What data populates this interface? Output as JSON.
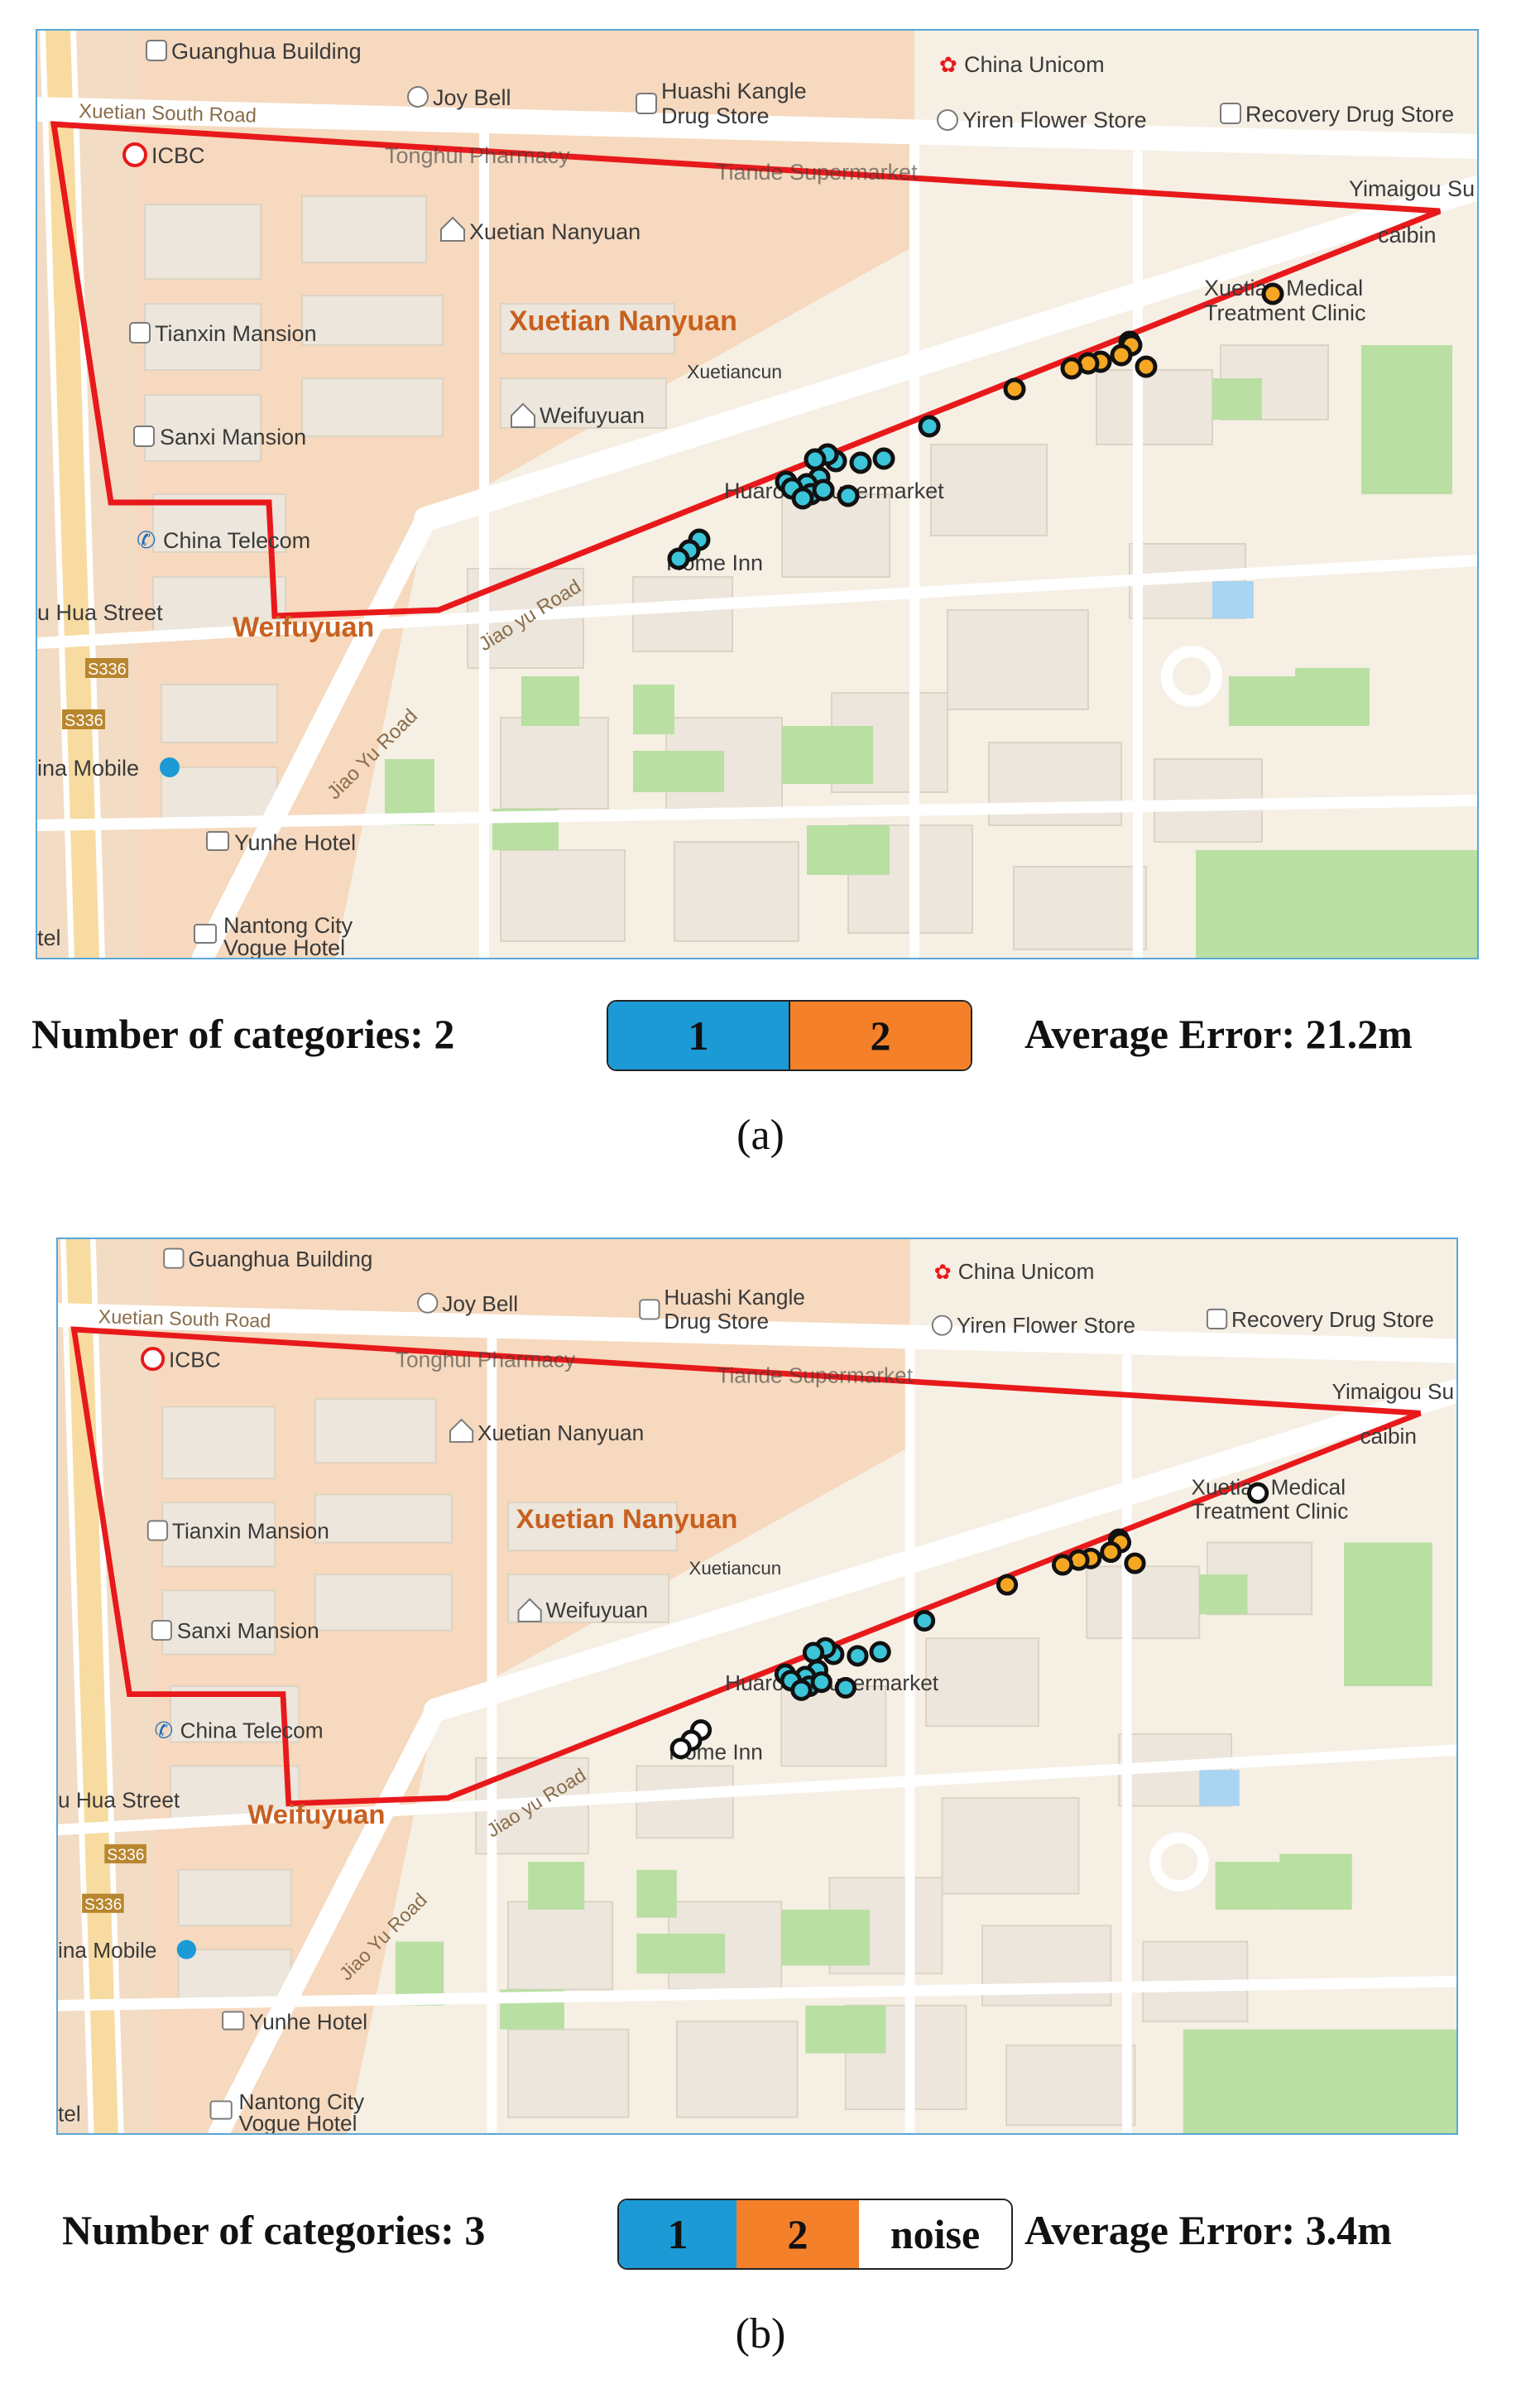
{
  "panels": [
    {
      "id": "a",
      "map": {
        "labels": {
          "guanghua": "Guanghua Building",
          "joybell": "Joy Bell",
          "huashi1": "Huashi Kangle",
          "huashi2": "Drug Store",
          "unicom": "China Unicom",
          "yiren": "Yiren Flower Store",
          "recovery": "Recovery Drug Store",
          "xuetian_road": "Xuetian South Road",
          "icbc": "ICBC",
          "tonghui": "Tonghui Pharmacy",
          "tiande": "Tiande Supermarket",
          "yimaigou": "Yimaigou Su",
          "caibin": "caibin",
          "xuetian_nanyuan_poi": "Xuetian Nanyuan",
          "medical1": "Xuetian Medical",
          "medical2": "Treatment Clinic",
          "tianxin": "Tianxin Mansion",
          "xuetian_nanyuan_area": "Xuetian Nanyuan",
          "xuetiancun": "Xuetiancun",
          "weifuyuan_poi": "Weifuyuan",
          "sanxi": "Sanxi Mansion",
          "huarong": "Huarong Supermarket",
          "china_telecom": "China Telecom",
          "home_inn": "Home Inn",
          "hua_street": "u Hua Street",
          "weifuyuan_area": "Weifuyuan",
          "jiaoyu1": "Jiao yu Road",
          "jiaoyu2": "Jiao Yu Road",
          "s336a": "S336",
          "s336b": "S336",
          "china_mobile": "ina Mobile",
          "yunhe": "Yunhe Hotel",
          "nantong1": "Nantong City",
          "nantong2": "Vogue Hotel",
          "hotel_cut": "tel"
        }
      },
      "categories_text": "Number of categories: 2",
      "legend": [
        {
          "label": "1",
          "color": "#1b9ad6"
        },
        {
          "label": "2",
          "color": "#f5802a"
        }
      ],
      "error_text": "Average Error: 21.2m",
      "subcaption": "(a)"
    },
    {
      "id": "b",
      "map": {
        "labels": {
          "guanghua": "Guanghua Building",
          "joybell": "Joy Bell",
          "huashi1": "Huashi Kangle",
          "huashi2": "Drug Store",
          "unicom": "China Unicom",
          "yiren": "Yiren Flower Store",
          "recovery": "Recovery Drug Store",
          "xuetian_road": "Xuetian South Road",
          "icbc": "ICBC",
          "tonghui": "Tonghui Pharmacy",
          "tiande": "Tiande Supermarket",
          "yimaigou": "Yimaigou Su",
          "caibin": "caibin",
          "xuetian_nanyuan_poi": "Xuetian Nanyuan",
          "medical1": "Xuetian Medical",
          "medical2": "Treatment Clinic",
          "tianxin": "Tianxin Mansion",
          "xuetian_nanyuan_area": "Xuetian Nanyuan",
          "xuetiancun": "Xuetiancun",
          "weifuyuan_poi": "Weifuyuan",
          "sanxi": "Sanxi Mansion",
          "huarong": "Huarong Supermarket",
          "china_telecom": "China Telecom",
          "home_inn": "Home Inn",
          "hua_street": "u Hua Street",
          "weifuyuan_area": "Weifuyuan",
          "jiaoyu1": "Jiao yu Road",
          "jiaoyu2": "Jiao Yu Road",
          "s336a": "S336",
          "s336b": "S336",
          "china_mobile": "ina Mobile",
          "yunhe": "Yunhe Hotel",
          "nantong1": "Nantong City",
          "nantong2": "Vogue Hotel",
          "hotel_cut": "tel"
        }
      },
      "categories_text": "Number of categories: 3",
      "legend": [
        {
          "label": "1",
          "color": "#1b9ad6"
        },
        {
          "label": "2",
          "color": "#f5802a"
        },
        {
          "label": "noise",
          "color": "#ffffff"
        }
      ],
      "error_text": "Average Error: 3.4m",
      "subcaption": "(b)"
    }
  ],
  "colors": {
    "boundary": "#e8191b",
    "cluster1": "#3cc4d8",
    "cluster2": "#f5a623",
    "noise": "#ffffff",
    "marker_stroke": "#111111",
    "map_bg": "#f6efe4",
    "residential": "#f5d2b2",
    "green": "#b9dfa3",
    "water": "#a9d4f2",
    "frame": "#5aa6d8"
  }
}
